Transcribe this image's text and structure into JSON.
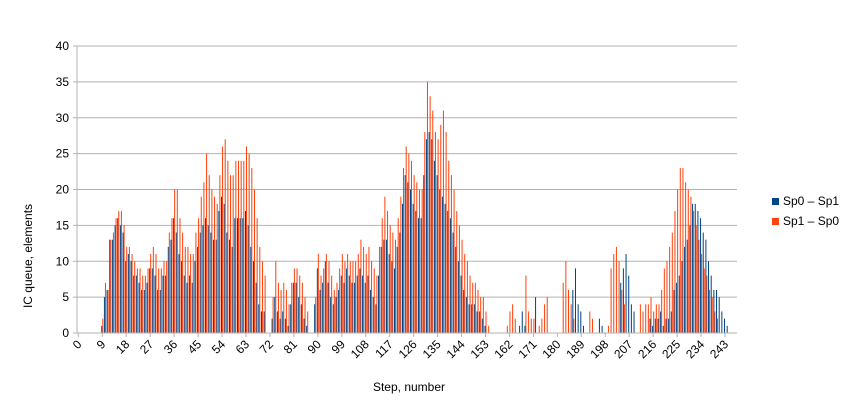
{
  "chart_data": {
    "type": "bar",
    "title": "",
    "xlabel": "Step, number",
    "ylabel": "IC queue, elements",
    "ylim": [
      0,
      40
    ],
    "yticks": [
      0,
      5,
      10,
      15,
      20,
      25,
      30,
      35,
      40
    ],
    "xtick_labels": [
      "0",
      "9",
      "18",
      "27",
      "36",
      "45",
      "54",
      "63",
      "72",
      "81",
      "90",
      "99",
      "108",
      "117",
      "126",
      "135",
      "144",
      "153",
      "162",
      "171",
      "180",
      "189",
      "198",
      "207",
      "216",
      "225",
      "234",
      "243"
    ],
    "grid": "horizontal",
    "legend_position": "right",
    "steps": [
      0,
      1,
      2,
      3,
      4,
      5,
      6,
      7,
      8,
      9,
      10,
      11,
      12,
      13,
      14,
      15,
      16,
      17,
      18,
      19,
      20,
      21,
      22,
      23,
      24,
      25,
      26,
      27,
      28,
      29,
      30,
      31,
      32,
      33,
      34,
      35,
      36,
      37,
      38,
      39,
      40,
      41,
      42,
      43,
      44,
      45,
      46,
      47,
      48,
      49,
      50,
      51,
      52,
      53,
      54,
      55,
      56,
      57,
      58,
      59,
      60,
      61,
      62,
      63,
      64,
      65,
      66,
      67,
      68,
      69,
      70,
      71,
      72,
      73,
      74,
      75,
      76,
      77,
      78,
      79,
      80,
      81,
      82,
      83,
      84,
      85,
      86,
      87,
      88,
      89,
      90,
      91,
      92,
      93,
      94,
      95,
      96,
      97,
      98,
      99,
      100,
      101,
      102,
      103,
      104,
      105,
      106,
      107,
      108,
      109,
      110,
      111,
      112,
      113,
      114,
      115,
      116,
      117,
      118,
      119,
      120,
      121,
      122,
      123,
      124,
      125,
      126,
      127,
      128,
      129,
      130,
      131,
      132,
      133,
      134,
      135,
      136,
      137,
      138,
      139,
      140,
      141,
      142,
      143,
      144,
      145,
      146,
      147,
      148,
      149,
      150,
      151,
      152,
      153,
      154,
      155,
      156,
      157,
      158,
      159,
      160,
      161,
      162,
      163,
      164,
      165,
      166,
      167,
      168,
      169,
      170,
      171,
      172,
      173,
      174,
      175,
      176,
      177,
      178,
      179,
      180,
      181,
      182,
      183,
      184,
      185,
      186,
      187,
      188,
      189,
      190,
      191,
      192,
      193,
      194,
      195,
      196,
      197,
      198,
      199,
      200,
      201,
      202,
      203,
      204,
      205,
      206,
      207,
      208,
      209,
      210,
      211,
      212,
      213,
      214,
      215,
      216,
      217,
      218,
      219,
      220,
      221,
      222,
      223,
      224,
      225,
      226,
      227,
      228,
      229,
      230,
      231,
      232,
      233,
      234,
      235,
      236,
      237,
      238,
      239,
      240,
      241,
      242,
      243,
      244,
      245,
      246,
      247
    ],
    "series": [
      {
        "name": "Sp0 – Sp1",
        "color": "#004586",
        "values": [
          0,
          0,
          0,
          0,
          0,
          0,
          0,
          0,
          0,
          1,
          5,
          6,
          13,
          13,
          15,
          16,
          15,
          14,
          10,
          11,
          10,
          8,
          8,
          7,
          6,
          6,
          7,
          9,
          9,
          8,
          6,
          6,
          8,
          8,
          12,
          13,
          16,
          14,
          11,
          10,
          8,
          7,
          8,
          7,
          10,
          12,
          14,
          15,
          16,
          15,
          14,
          13,
          13,
          17,
          19,
          18,
          14,
          13,
          12,
          16,
          16,
          16,
          16,
          17,
          15,
          12,
          10,
          7,
          4,
          3,
          3,
          0,
          0,
          2,
          5,
          3,
          2,
          3,
          2,
          1,
          4,
          7,
          7,
          5,
          4,
          2,
          1,
          0,
          0,
          4,
          9,
          6,
          7,
          10,
          7,
          5,
          4,
          5,
          6,
          8,
          7,
          9,
          8,
          7,
          7,
          8,
          9,
          8,
          7,
          8,
          6,
          5,
          4,
          8,
          12,
          13,
          13,
          11,
          10,
          9,
          12,
          14,
          18,
          22,
          21,
          20,
          18,
          17,
          16,
          16,
          22,
          27,
          28,
          27,
          24,
          22,
          20,
          19,
          18,
          17,
          16,
          14,
          12,
          10,
          8,
          6,
          5,
          4,
          4,
          4,
          3,
          3,
          2,
          1,
          0,
          0,
          0,
          0,
          0,
          0,
          0,
          0,
          0,
          0,
          0,
          0,
          1,
          3,
          1,
          0,
          0,
          0,
          5,
          0,
          0,
          0,
          0,
          0,
          0,
          0,
          0,
          0,
          0,
          0,
          0,
          0,
          6,
          9,
          4,
          3,
          1,
          0,
          0,
          0,
          0,
          0,
          2,
          1,
          0,
          0,
          0,
          0,
          0,
          0,
          7,
          9,
          11,
          8,
          4,
          3,
          0,
          0,
          0,
          0,
          0,
          2,
          1,
          2,
          2,
          3,
          1,
          2,
          2,
          3,
          6,
          7,
          8,
          10,
          12,
          13,
          15,
          18,
          18,
          17,
          16,
          14,
          13,
          10,
          8,
          6,
          6,
          5,
          3,
          2,
          1,
          0
        ]
      },
      {
        "name": "Sp1 – Sp0",
        "color": "#ff420e",
        "values": [
          0,
          0,
          0,
          0,
          0,
          0,
          0,
          0,
          0,
          2,
          7,
          6,
          13,
          14,
          16,
          17,
          17,
          15,
          12,
          12,
          11,
          10,
          9,
          9,
          8,
          8,
          9,
          11,
          12,
          11,
          9,
          9,
          10,
          10,
          14,
          16,
          20,
          20,
          16,
          14,
          12,
          12,
          11,
          11,
          14,
          16,
          19,
          21,
          25,
          22,
          20,
          19,
          18,
          22,
          26,
          27,
          24,
          22,
          22,
          24,
          24,
          24,
          24,
          26,
          25,
          23,
          20,
          16,
          12,
          10,
          8,
          0,
          0,
          5,
          10,
          7,
          6,
          7,
          6,
          4,
          7,
          9,
          9,
          8,
          7,
          5,
          3,
          0,
          0,
          5,
          11,
          8,
          9,
          11,
          10,
          8,
          6,
          7,
          9,
          11,
          10,
          11,
          10,
          10,
          10,
          11,
          13,
          12,
          11,
          12,
          10,
          9,
          8,
          12,
          16,
          19,
          17,
          15,
          14,
          13,
          16,
          19,
          23,
          26,
          25,
          24,
          22,
          21,
          20,
          20,
          28,
          35,
          33,
          31,
          28,
          27,
          29,
          31,
          28,
          24,
          22,
          20,
          17,
          15,
          13,
          11,
          10,
          8,
          7,
          7,
          6,
          5,
          5,
          3,
          1,
          0,
          0,
          0,
          0,
          0,
          0,
          1,
          3,
          4,
          2,
          0,
          0,
          0,
          8,
          3,
          2,
          2,
          0,
          1,
          2,
          4,
          5,
          0,
          0,
          0,
          0,
          0,
          7,
          10,
          6,
          4,
          2,
          0,
          0,
          0,
          0,
          0,
          3,
          2,
          0,
          0,
          0,
          0,
          0,
          1,
          9,
          11,
          12,
          10,
          6,
          4,
          0,
          0,
          0,
          0,
          0,
          4,
          3,
          4,
          4,
          5,
          3,
          4,
          4,
          6,
          9,
          10,
          12,
          14,
          17,
          20,
          23,
          23,
          21,
          20,
          19,
          17,
          15,
          13,
          11,
          9,
          8,
          6,
          5,
          3,
          2,
          0
        ]
      }
    ]
  }
}
